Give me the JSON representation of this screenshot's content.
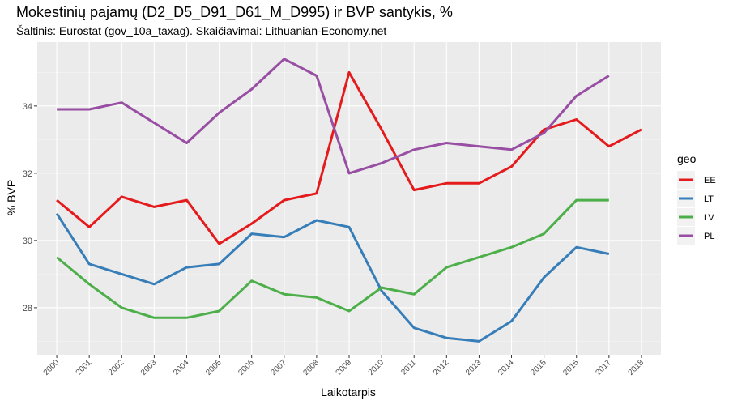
{
  "chart_data": {
    "type": "line",
    "title": "Mokestinių pajamų (D2_D5_D91_D61_M_D995) ir BVP santykis, %",
    "subtitle": "Šaltinis: Eurostat (gov_10a_taxag). Skaičiavimai: Lithuanian-Economy.net",
    "xlabel": "Laikotarpis",
    "ylabel": "% BVP",
    "categories": [
      "2000",
      "2001",
      "2002",
      "2003",
      "2004",
      "2005",
      "2006",
      "2007",
      "2008",
      "2009",
      "2010",
      "2011",
      "2012",
      "2013",
      "2014",
      "2015",
      "2016",
      "2017",
      "2018"
    ],
    "ylim": [
      26.6,
      35.9
    ],
    "yticks": [
      28,
      30,
      32,
      34
    ],
    "grid": true,
    "legend": {
      "title": "geo",
      "position": "right"
    },
    "series": [
      {
        "name": "EE",
        "color": "#E41A1C",
        "values": [
          31.2,
          30.4,
          31.3,
          31.0,
          31.2,
          29.9,
          30.5,
          31.2,
          31.4,
          35.0,
          33.3,
          31.5,
          31.7,
          31.7,
          32.2,
          33.3,
          33.6,
          32.8,
          33.3
        ]
      },
      {
        "name": "LT",
        "color": "#377EB8",
        "values": [
          30.8,
          29.3,
          29.0,
          28.7,
          29.2,
          29.3,
          30.2,
          30.1,
          30.6,
          30.4,
          28.5,
          27.4,
          27.1,
          27.0,
          27.6,
          28.9,
          29.8,
          29.6,
          null
        ]
      },
      {
        "name": "LV",
        "color": "#4DAF4A",
        "values": [
          29.5,
          28.7,
          28.0,
          27.7,
          27.7,
          27.9,
          28.8,
          28.4,
          28.3,
          27.9,
          28.6,
          28.4,
          29.2,
          29.5,
          29.8,
          30.2,
          31.2,
          31.2,
          null
        ]
      },
      {
        "name": "PL",
        "color": "#984EA3",
        "values": [
          33.9,
          33.9,
          34.1,
          33.5,
          32.9,
          33.8,
          34.5,
          35.4,
          34.9,
          32.0,
          32.3,
          32.7,
          32.9,
          32.8,
          32.7,
          33.2,
          34.3,
          34.9,
          null
        ]
      }
    ]
  }
}
